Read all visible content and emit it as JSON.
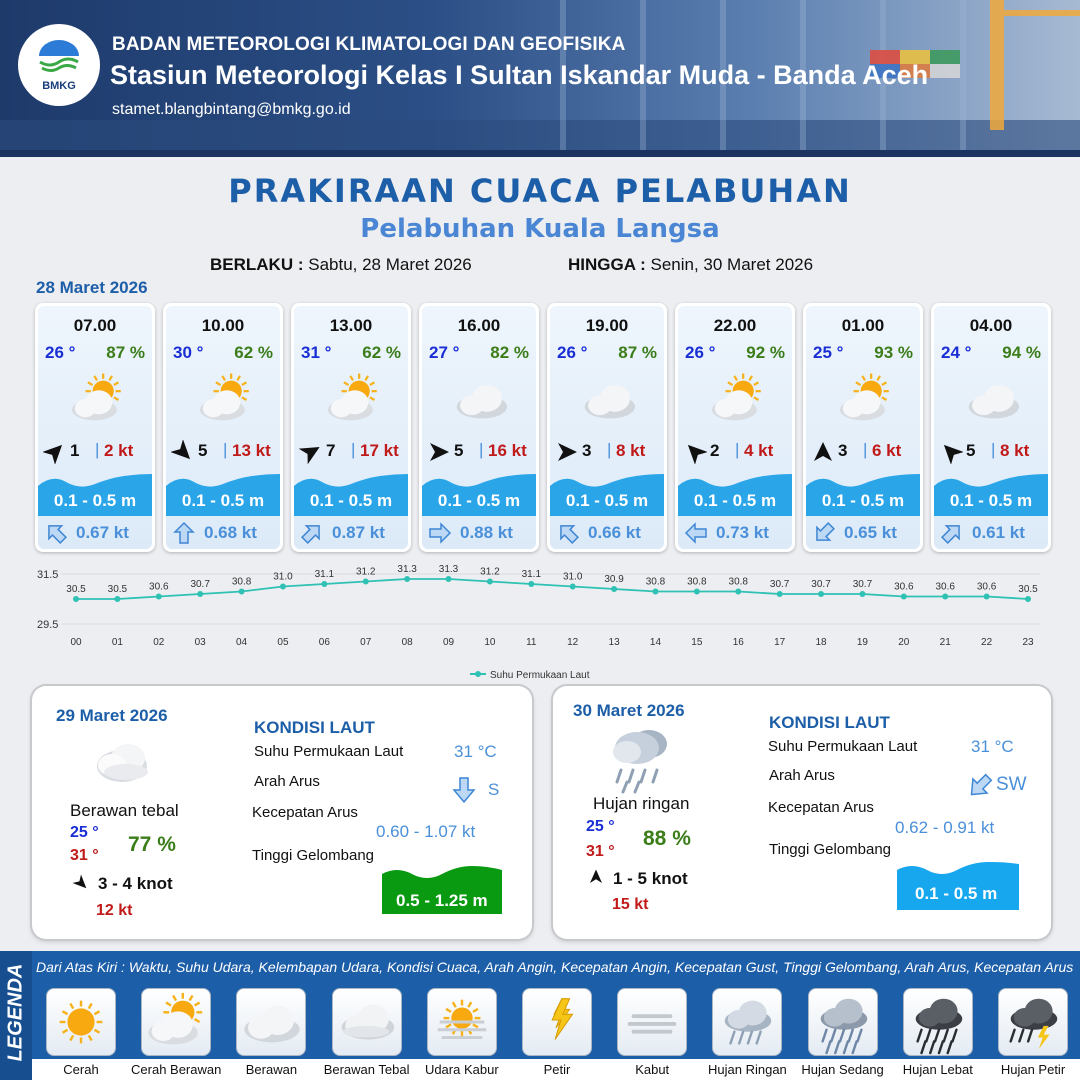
{
  "header": {
    "logo_text": "BMKG",
    "agency": "BADAN METEOROLOGI KLIMATOLOGI DAN GEOFISIKA",
    "station": "Stasiun Meteorologi Kelas I Sultan Iskandar Muda - Banda Aceh",
    "email": "stamet.blangbintang@bmkg.go.id"
  },
  "title": "PRAKIRAAN CUACA PELABUHAN",
  "subtitle": "Pelabuhan Kuala Langsa",
  "validity": {
    "from_label": "BERLAKU :",
    "from_value": "Sabtu, 28 Maret 2026",
    "to_label": "HINGGA :",
    "to_value": "Senin, 30 Maret 2026"
  },
  "day1": {
    "date": "28 Maret 2026",
    "slots": [
      {
        "time": "07.00",
        "temp": "26 °",
        "hum": "87 %",
        "icon": "sunny-cloudy-icon",
        "wind_dir_deg": 225,
        "wind": "1",
        "gust": "2 kt",
        "wave": "0.1 - 0.5 m",
        "current_dir_deg": 135,
        "current": "0.67 kt"
      },
      {
        "time": "10.00",
        "temp": "30 °",
        "hum": "62 %",
        "icon": "sunny-cloudy-icon",
        "wind_dir_deg": 315,
        "wind": "5",
        "gust": "13 kt",
        "wave": "0.1 - 0.5 m",
        "current_dir_deg": 180,
        "current": "0.68 kt"
      },
      {
        "time": "13.00",
        "temp": "31 °",
        "hum": "62 %",
        "icon": "sunny-cloudy-icon",
        "wind_dir_deg": 240,
        "wind": "7",
        "gust": "17 kt",
        "wave": "0.1 - 0.5 m",
        "current_dir_deg": 225,
        "current": "0.87 kt"
      },
      {
        "time": "16.00",
        "temp": "27 °",
        "hum": "82 %",
        "icon": "cloudy-icon",
        "wind_dir_deg": 270,
        "wind": "5",
        "gust": "16 kt",
        "wave": "0.1 - 0.5 m",
        "current_dir_deg": 270,
        "current": "0.88 kt"
      },
      {
        "time": "19.00",
        "temp": "26 °",
        "hum": "87 %",
        "icon": "cloudy-icon",
        "wind_dir_deg": 270,
        "wind": "3",
        "gust": "8 kt",
        "wave": "0.1 - 0.5 m",
        "current_dir_deg": 135,
        "current": "0.66 kt"
      },
      {
        "time": "22.00",
        "temp": "26 °",
        "hum": "92 %",
        "icon": "sunny-cloudy-icon",
        "wind_dir_deg": 135,
        "wind": "2",
        "gust": "4 kt",
        "wave": "0.1 - 0.5 m",
        "current_dir_deg": 90,
        "current": "0.73 kt"
      },
      {
        "time": "01.00",
        "temp": "25 °",
        "hum": "93 %",
        "icon": "sunny-cloudy-icon",
        "wind_dir_deg": 180,
        "wind": "3",
        "gust": "6 kt",
        "wave": "0.1 - 0.5 m",
        "current_dir_deg": 45,
        "current": "0.65 kt"
      },
      {
        "time": "04.00",
        "temp": "24 °",
        "hum": "94 %",
        "icon": "cloudy-icon",
        "wind_dir_deg": 135,
        "wind": "5",
        "gust": "8 kt",
        "wave": "0.1 - 0.5 m",
        "current_dir_deg": 225,
        "current": "0.61 kt"
      }
    ]
  },
  "chart_data": {
    "type": "line",
    "x": [
      "00",
      "01",
      "02",
      "03",
      "04",
      "05",
      "06",
      "07",
      "08",
      "09",
      "10",
      "11",
      "12",
      "13",
      "14",
      "15",
      "16",
      "17",
      "18",
      "19",
      "20",
      "21",
      "22",
      "23"
    ],
    "series": [
      {
        "name": "Suhu Permukaan Laut",
        "values": [
          30.5,
          30.5,
          30.6,
          30.7,
          30.8,
          31.0,
          31.1,
          31.2,
          31.3,
          31.3,
          31.2,
          31.1,
          31.0,
          30.9,
          30.8,
          30.8,
          30.8,
          30.7,
          30.7,
          30.7,
          30.6,
          30.6,
          30.6,
          30.5
        ]
      }
    ],
    "ylim": [
      29.5,
      31.5
    ],
    "yticks": [
      "31.5",
      "29.5"
    ],
    "value_labels": [
      "30.5",
      "30.5",
      "30.6",
      "30.7",
      "30.8",
      "31.0",
      "31.1",
      "31.2",
      "31.3",
      "31.3",
      "31.2",
      "31.1",
      "31.0",
      "30.9",
      "30.8",
      "30.8",
      "30.8",
      "30.7",
      "30.7",
      "30.7",
      "30.6",
      "30.6",
      "30.6",
      "30.5"
    ],
    "legend": "bottom-center",
    "color": "#2fc1b4"
  },
  "day2": {
    "date": "29 Maret 2026",
    "condition": "Berawan tebal",
    "icon": "thick-cloud-icon",
    "tmin": "25 °",
    "tmax": "31 °",
    "hum": "77 %",
    "wind": "3  - 4 knot",
    "gust": "12 kt",
    "sea": {
      "heading": "KONDISI LAUT",
      "sst_label": "Suhu Permukaan Laut",
      "sst": "31 °C",
      "dir_label": "Arah Arus",
      "dir": "S",
      "speed_label": "Kecepatan Arus",
      "speed": "0.60  - 1.07 kt",
      "wave_label": "Tinggi Gelombang",
      "wave": "0.5 - 1.25 m",
      "wave_color": "#0a9a12"
    }
  },
  "day3": {
    "date": "30 Maret 2026",
    "condition": "Hujan ringan",
    "icon": "light-rain-icon",
    "tmin": "25 °",
    "tmax": "31 °",
    "hum": "88 %",
    "wind": "1  - 5 knot",
    "gust": "15 kt",
    "sea": {
      "heading": "KONDISI LAUT",
      "sst_label": "Suhu Permukaan Laut",
      "sst": "31 °C",
      "dir_label": "Arah Arus",
      "dir": "SW",
      "speed_label": "Kecepatan Arus",
      "speed": "0.62  - 0.91 kt",
      "wave_label": "Tinggi Gelombang",
      "wave": "0.1 - 0.5 m",
      "wave_color": "#17a7ef"
    }
  },
  "legend": {
    "title": "LEGENDA",
    "description": "Dari Atas Kiri : Waktu, Suhu Udara, Kelembapan Udara, Kondisi Cuaca, Arah Angin, Kecepatan Angin, Kecepatan Gust, Tinggi Gelombang, Arah Arus, Kecepatan Arus",
    "items": [
      {
        "label": "Cerah",
        "icon": "sun-icon"
      },
      {
        "label": "Cerah Berawan",
        "icon": "sunny-cloudy-icon"
      },
      {
        "label": "Berawan",
        "icon": "cloudy-icon"
      },
      {
        "label": "Berawan Tebal",
        "icon": "thick-cloud-icon"
      },
      {
        "label": "Udara Kabur",
        "icon": "haze-icon"
      },
      {
        "label": "Petir",
        "icon": "lightning-icon"
      },
      {
        "label": "Kabut",
        "icon": "fog-icon"
      },
      {
        "label": "Hujan Ringan",
        "icon": "light-rain-icon"
      },
      {
        "label": "Hujan Sedang",
        "icon": "moderate-rain-icon"
      },
      {
        "label": "Hujan Lebat",
        "icon": "heavy-rain-icon"
      },
      {
        "label": "Hujan Petir",
        "icon": "thunderstorm-icon"
      }
    ]
  }
}
